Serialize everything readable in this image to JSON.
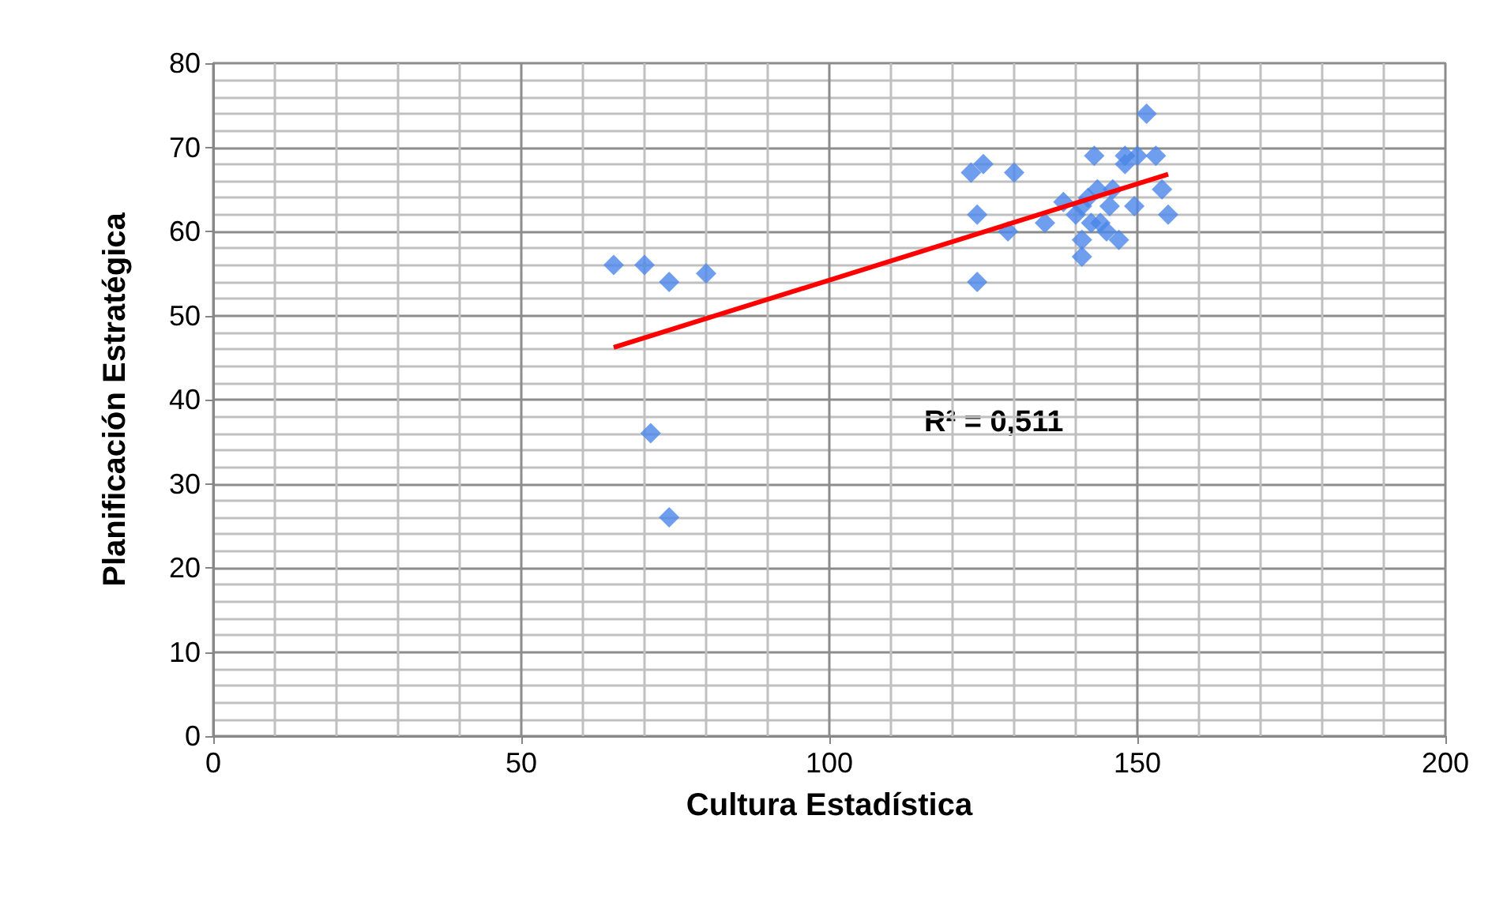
{
  "chart_data": {
    "type": "scatter",
    "xlabel": "Cultura Estadística",
    "ylabel": "Planificación Estratégica",
    "xlim": [
      0,
      200
    ],
    "xticks": [
      0,
      50,
      100,
      150,
      200
    ],
    "ylim": [
      0,
      80
    ],
    "yticks": [
      0,
      10,
      20,
      30,
      40,
      50,
      60,
      70,
      80
    ],
    "grid": true,
    "marker": "diamond",
    "annotations": [
      "R² = 0,511"
    ],
    "series": [
      {
        "color": "#4a86e8",
        "x": [
          65,
          70,
          74,
          80,
          71,
          74,
          123,
          125,
          124,
          124,
          130,
          129,
          135,
          138,
          143,
          151.5,
          155,
          154,
          153,
          150,
          148,
          148,
          149.5,
          147,
          141,
          141,
          140,
          142,
          143.5,
          144,
          145.5,
          146,
          142.5,
          141,
          145
        ],
        "values": [
          56,
          56,
          54,
          55,
          36,
          26,
          67,
          68,
          62,
          54,
          67,
          60,
          61,
          63.5,
          69,
          74,
          62,
          65,
          69,
          69,
          68,
          69,
          63,
          59,
          57,
          59,
          62,
          64,
          65,
          61,
          63,
          65,
          61,
          63,
          60
        ]
      },
      {
        "type": "line",
        "marker": "none",
        "color": "#ff0000",
        "x": [
          65,
          155
        ],
        "values": [
          46.2,
          66.8
        ]
      }
    ]
  }
}
